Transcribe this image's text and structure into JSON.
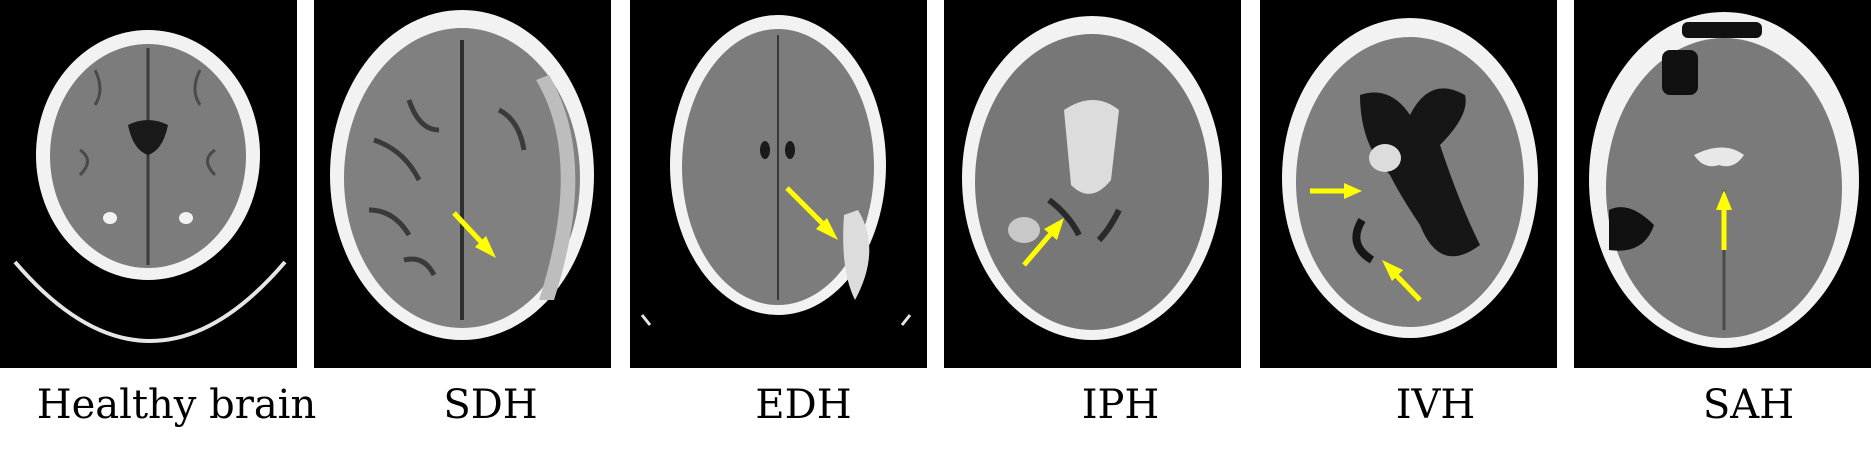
{
  "figure": {
    "panels": [
      {
        "label": "Healthy brain",
        "arrow_icon": "none"
      },
      {
        "label": "SDH",
        "arrow_icon": "yellow-arrow"
      },
      {
        "label": "EDH",
        "arrow_icon": "yellow-arrow"
      },
      {
        "label": "IPH",
        "arrow_icon": "yellow-arrow"
      },
      {
        "label": "IVH",
        "arrow_icon": "yellow-arrow"
      },
      {
        "label": "SAH",
        "arrow_icon": "yellow-arrow"
      }
    ],
    "colors": {
      "background": "#000000",
      "skull": "#f2f2f2",
      "brain": "#7c7c7c",
      "csf": "#1a1a1a",
      "blood": "#dcdcdc",
      "arrow": "#ffff00"
    }
  }
}
